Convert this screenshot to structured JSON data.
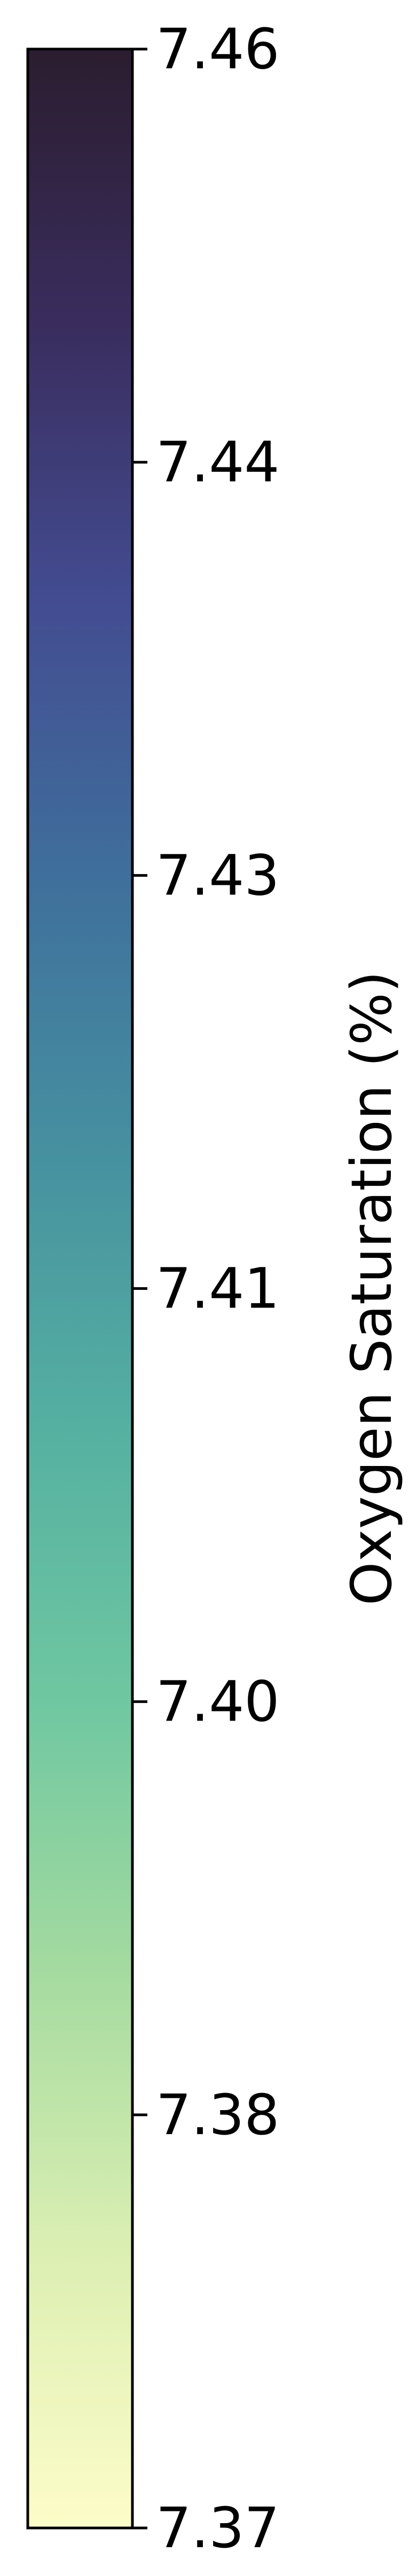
{
  "chart_data": {
    "type": "colorbar",
    "colormap": "YlGnBu-like (pale yellow → green → teal → blue → dark navy)",
    "color_stops": [
      "#fdfcc8",
      "#dcefb3",
      "#a6dba0",
      "#6fc7a1",
      "#55b0a1",
      "#4690a0",
      "#3f6f9c",
      "#434c91",
      "#3a2d5e",
      "#2b1d2f"
    ],
    "vmin": 7.37,
    "vmax": 7.46,
    "ticks": [
      7.37,
      7.38,
      7.4,
      7.41,
      7.43,
      7.44,
      7.46
    ],
    "tick_labels": [
      "7.37",
      "7.38",
      "7.40",
      "7.41",
      "7.43",
      "7.44",
      "7.46"
    ],
    "ylabel": "Oxygen Saturation (%)",
    "orientation": "vertical"
  }
}
